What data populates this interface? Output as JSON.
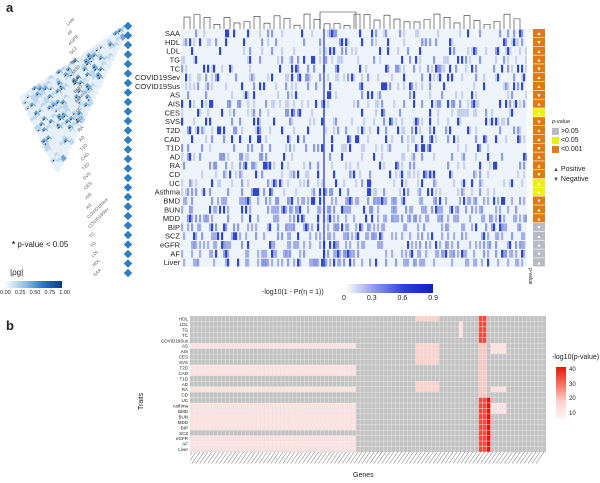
{
  "panel_a": {
    "letter": "a",
    "traits": [
      "SAA",
      "HDL",
      "LDL",
      "TG",
      "TC",
      "COVID19Sev",
      "COVID19Sus",
      "AS",
      "AIS",
      "CES",
      "SVS",
      "T2D",
      "CAD",
      "T1D",
      "AD",
      "RA",
      "CD",
      "UC",
      "Asthma",
      "BMD",
      "BUN",
      "MDD",
      "BIP",
      "SCZ",
      "eGFR",
      "AF",
      "Liver"
    ],
    "tri_traits": [
      "Liver",
      "AF",
      "eGFR",
      "SCZ",
      "BIP",
      "MDD",
      "BUN",
      "BMD",
      "Asthma",
      "UC",
      "CD",
      "RA",
      "AD",
      "T1D",
      "CAD",
      "T2D",
      "SVS",
      "CES",
      "AIS",
      "AS",
      "COVID19Sus",
      "COVID19Sev",
      "TC",
      "TG",
      "LDL",
      "HDL",
      "SAA"
    ],
    "sig_note": "p-value < 0.05",
    "sig_symbol": "*",
    "rho_label": "|ρg|",
    "rho_ticks": [
      "0.00",
      "0.25",
      "0.50",
      "0.75",
      "1.00"
    ],
    "colorbar_label": "-log10(1 - Pr(η = 1))",
    "colorbar_ticks": [
      "0",
      "0.3",
      "0.6",
      "0.9"
    ],
    "pvalue_title": "p-value",
    "pvalue_levels": [
      ">0.05",
      "<0.05",
      "<0.001"
    ],
    "side_labels": [
      "Positive",
      "Negative"
    ],
    "side_axis_label": "p-value",
    "side_row_class": [
      "o",
      "o",
      "o",
      "o",
      "o",
      "o",
      "o",
      "o",
      "o",
      "y",
      "o",
      "o",
      "o",
      "o",
      "o",
      "o",
      "o",
      "y",
      "y",
      "o",
      "o",
      "o",
      "g",
      "g",
      "g",
      "g",
      "g"
    ],
    "colors": {
      "gray": "#b9bac4",
      "yellow": "#eef200",
      "orange": "#e07b14",
      "dark": "#1f35c8",
      "light": "#eaf2fb",
      "blue_tri": "#2d7fc1"
    }
  },
  "panel_b": {
    "letter": "b",
    "traits": [
      "HDL",
      "LDL",
      "TG",
      "TC",
      "COVID19Sus",
      "AS",
      "AIS",
      "CES",
      "SVS",
      "T2D",
      "CAD",
      "T1D",
      "AD",
      "RA",
      "CD",
      "UC",
      "Asthma",
      "BMD",
      "BUN",
      "MDD",
      "BIP",
      "SCZ",
      "eGFR",
      "AF",
      "Liver"
    ],
    "ylabel": "Traits",
    "xlabel": "Genes",
    "legend_title": "-log10(p-value)",
    "legend_ticks": [
      "40",
      "30",
      "20",
      "10"
    ],
    "colors": {
      "na": "#c3c3c3",
      "low": "#fde0dd",
      "high": "#e8140c"
    }
  }
}
